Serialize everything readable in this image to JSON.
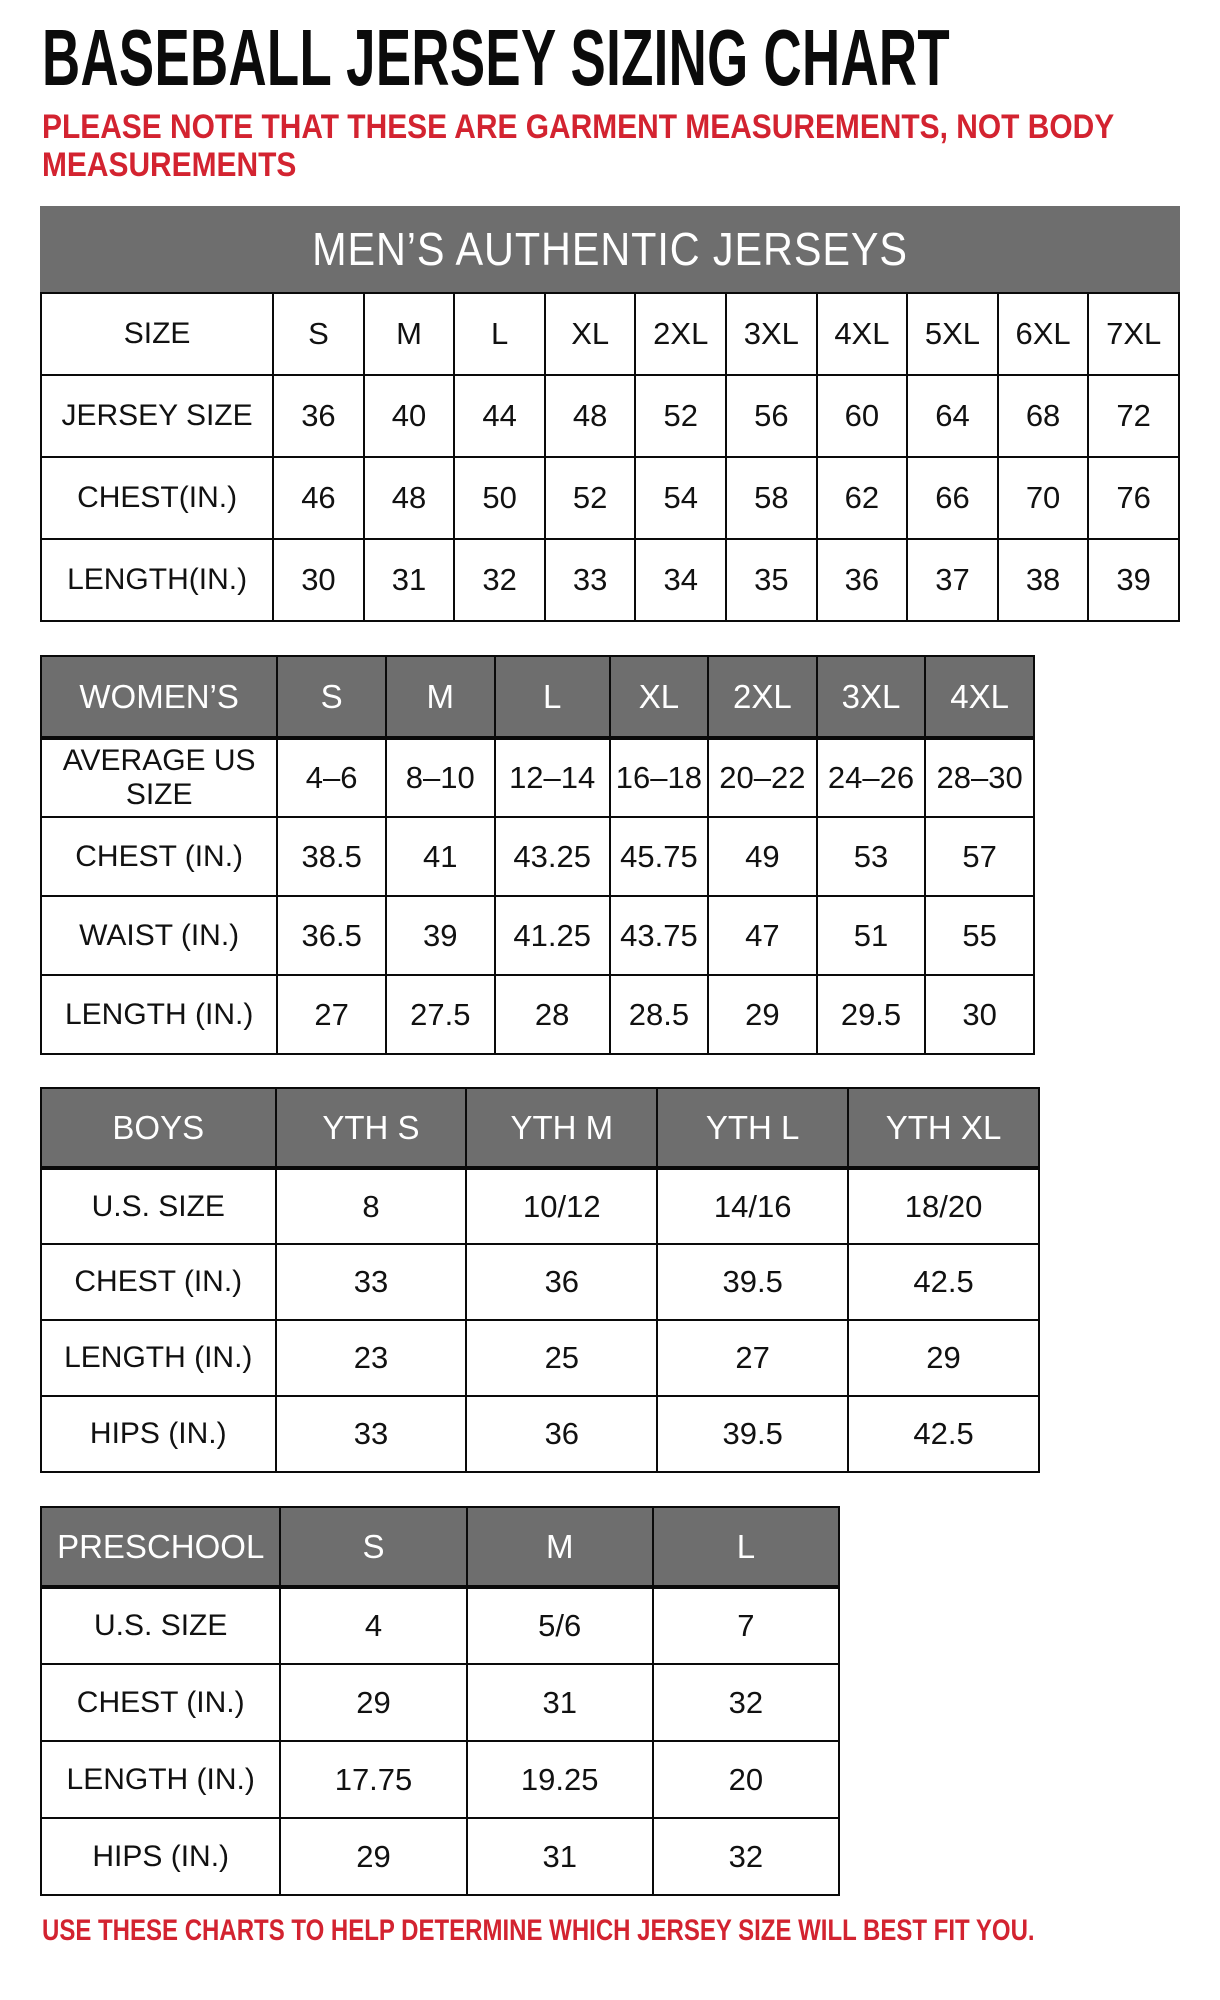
{
  "page": {
    "title": "BASEBALL JERSEY SIZING CHART",
    "note": "PLEASE NOTE THAT THESE ARE GARMENT MEASUREMENTS, NOT BODY MEASUREMENTS",
    "footer": "USE THESE CHARTS TO HELP DETERMINE WHICH JERSEY SIZE WILL BEST FIT YOU.",
    "colors": {
      "accent_red": "#d32330",
      "header_gray": "#6e6e6e"
    }
  },
  "tables": [
    {
      "id": "mens",
      "banner": "MEN’S AUTHENTIC JERSEYS",
      "rows": [
        {
          "label": "SIZE",
          "values": [
            "S",
            "M",
            "L",
            "XL",
            "2XL",
            "3XL",
            "4XL",
            "5XL",
            "6XL",
            "7XL"
          ]
        },
        {
          "label": "JERSEY SIZE",
          "values": [
            "36",
            "40",
            "44",
            "48",
            "52",
            "56",
            "60",
            "64",
            "68",
            "72"
          ]
        },
        {
          "label": "CHEST(IN.)",
          "values": [
            "46",
            "48",
            "50",
            "52",
            "54",
            "58",
            "62",
            "66",
            "70",
            "76"
          ]
        },
        {
          "label": "LENGTH(IN.)",
          "values": [
            "30",
            "31",
            "32",
            "33",
            "34",
            "35",
            "36",
            "37",
            "38",
            "39"
          ]
        }
      ]
    },
    {
      "id": "womens",
      "header_row": {
        "label": "WOMEN’S",
        "values": [
          "S",
          "M",
          "L",
          "XL",
          "2XL",
          "3XL",
          "4XL"
        ]
      },
      "rows": [
        {
          "label": "AVERAGE US SIZE",
          "values": [
            "4–6",
            "8–10",
            "12–14",
            "16–18",
            "20–22",
            "24–26",
            "28–30"
          ]
        },
        {
          "label": "CHEST (IN.)",
          "values": [
            "38.5",
            "41",
            "43.25",
            "45.75",
            "49",
            "53",
            "57"
          ]
        },
        {
          "label": "WAIST (IN.)",
          "values": [
            "36.5",
            "39",
            "41.25",
            "43.75",
            "47",
            "51",
            "55"
          ]
        },
        {
          "label": "LENGTH (IN.)",
          "values": [
            "27",
            "27.5",
            "28",
            "28.5",
            "29",
            "29.5",
            "30"
          ]
        }
      ]
    },
    {
      "id": "boys",
      "header_row": {
        "label": "BOYS",
        "values": [
          "YTH S",
          "YTH M",
          "YTH L",
          "YTH XL"
        ]
      },
      "rows": [
        {
          "label": "U.S. SIZE",
          "values": [
            "8",
            "10/12",
            "14/16",
            "18/20"
          ]
        },
        {
          "label": "CHEST (IN.)",
          "values": [
            "33",
            "36",
            "39.5",
            "42.5"
          ]
        },
        {
          "label": "LENGTH (IN.)",
          "values": [
            "23",
            "25",
            "27",
            "29"
          ]
        },
        {
          "label": "HIPS (IN.)",
          "values": [
            "33",
            "36",
            "39.5",
            "42.5"
          ]
        }
      ]
    },
    {
      "id": "preschool",
      "header_row": {
        "label": "PRESCHOOL",
        "values": [
          "S",
          "M",
          "L"
        ]
      },
      "rows": [
        {
          "label": "U.S. SIZE",
          "values": [
            "4",
            "5/6",
            "7"
          ]
        },
        {
          "label": "CHEST (IN.)",
          "values": [
            "29",
            "31",
            "32"
          ]
        },
        {
          "label": "LENGTH (IN.)",
          "values": [
            "17.75",
            "19.25",
            "20"
          ]
        },
        {
          "label": "HIPS (IN.)",
          "values": [
            "29",
            "31",
            "32"
          ]
        }
      ]
    }
  ]
}
